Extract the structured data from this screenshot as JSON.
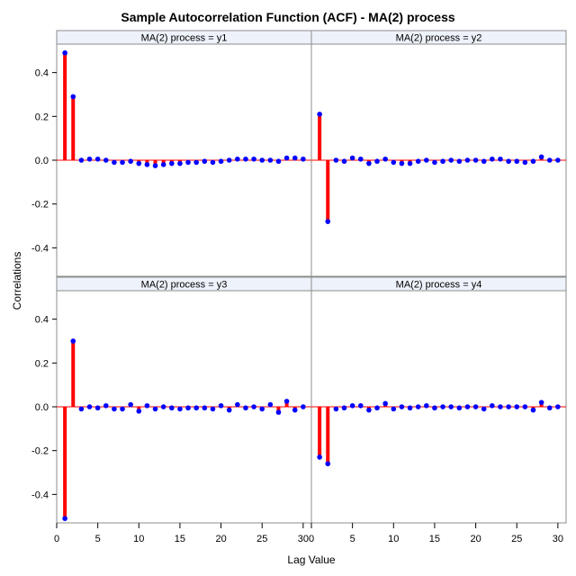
{
  "chart_data": {
    "type": "needle",
    "title": "Sample Autocorrelation Function (ACF) - MA(2) process",
    "xlabel": "Lag Value",
    "ylabel": "Correlations",
    "xlim": [
      0,
      31
    ],
    "ylim": [
      -0.53,
      0.53
    ],
    "xticks": [
      0,
      5,
      10,
      15,
      20,
      25,
      30
    ],
    "yticks": [
      -0.4,
      -0.2,
      0.0,
      0.2,
      0.4
    ],
    "ytick_labels": [
      "-0.4",
      "-0.2",
      "0.0",
      "0.2",
      "0.4"
    ],
    "lags": [
      1,
      2,
      3,
      4,
      5,
      6,
      7,
      8,
      9,
      10,
      11,
      12,
      13,
      14,
      15,
      16,
      17,
      18,
      19,
      20,
      21,
      22,
      23,
      24,
      25,
      26,
      27,
      28,
      29,
      30
    ],
    "colors": {
      "needle": "#ff0000",
      "marker": "#0000ff",
      "baseline": "#ff0000",
      "strip_bg": "#eef2fa",
      "border": "#8c8c8c"
    },
    "panels": [
      {
        "label": "MA(2) process = y1",
        "values": [
          0.49,
          0.29,
          0.0,
          0.005,
          0.005,
          0.0,
          -0.01,
          -0.01,
          -0.005,
          -0.015,
          -0.02,
          -0.025,
          -0.02,
          -0.015,
          -0.015,
          -0.01,
          -0.01,
          -0.005,
          -0.01,
          -0.005,
          0.0,
          0.005,
          0.005,
          0.005,
          0.0,
          0.0,
          -0.005,
          0.01,
          0.01,
          0.005
        ]
      },
      {
        "label": "MA(2) process = y2",
        "values": [
          0.21,
          -0.28,
          0.0,
          -0.005,
          0.01,
          0.005,
          -0.015,
          -0.005,
          0.005,
          -0.01,
          -0.015,
          -0.015,
          -0.005,
          0.0,
          -0.01,
          -0.005,
          0.0,
          -0.005,
          0.0,
          0.0,
          -0.005,
          0.005,
          0.005,
          -0.005,
          -0.005,
          -0.01,
          -0.005,
          0.015,
          0.0,
          0.0
        ]
      },
      {
        "label": "MA(2) process = y3",
        "values": [
          -0.51,
          0.3,
          -0.01,
          0.0,
          -0.005,
          0.005,
          -0.01,
          -0.01,
          0.01,
          -0.02,
          0.005,
          -0.01,
          0.0,
          -0.005,
          -0.01,
          -0.005,
          -0.005,
          -0.005,
          -0.01,
          0.005,
          -0.015,
          0.01,
          -0.005,
          0.0,
          -0.01,
          0.01,
          -0.025,
          0.025,
          -0.015,
          0.0
        ]
      },
      {
        "label": "MA(2) process = y4",
        "values": [
          -0.23,
          -0.26,
          -0.01,
          -0.005,
          0.005,
          0.005,
          -0.015,
          -0.005,
          0.015,
          -0.01,
          0.0,
          -0.005,
          0.0,
          0.005,
          -0.005,
          0.0,
          0.0,
          -0.005,
          0.0,
          0.0,
          -0.01,
          0.005,
          0.0,
          0.0,
          0.0,
          0.0,
          -0.015,
          0.02,
          -0.005,
          0.0
        ]
      }
    ]
  }
}
